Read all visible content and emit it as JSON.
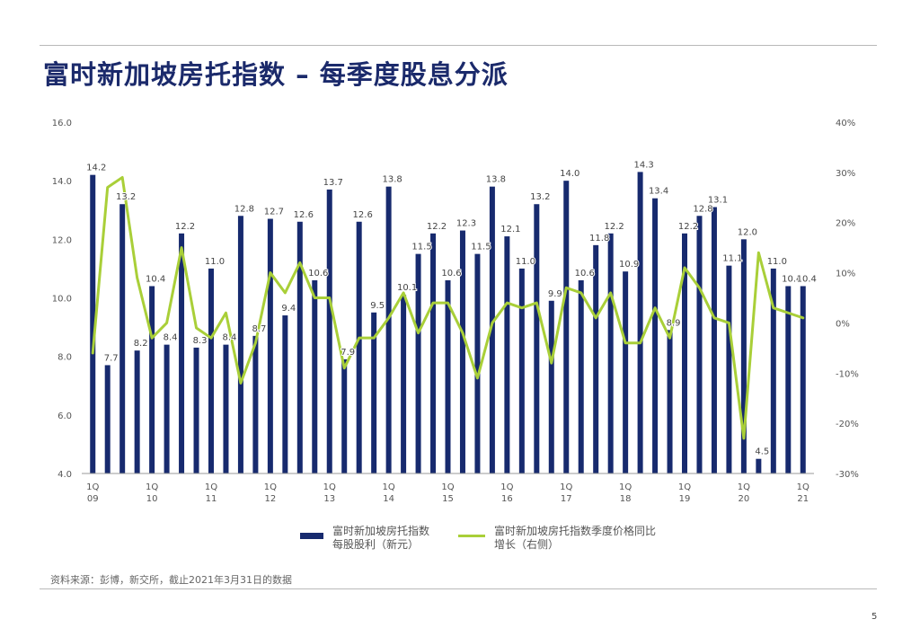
{
  "page": {
    "title": "富时新加坡房托指数 – 每季度股息分派",
    "source": "资料来源：彭博，新交所，截止2021年3月31日的数据",
    "page_number": "5"
  },
  "colors": {
    "bar": "#172a6e",
    "line": "#a9cf38",
    "title": "#1b2a6b"
  },
  "legend": {
    "bar_line1": "富时新加坡房托指数",
    "bar_line2": "每股股利（新元）",
    "line_line1": "富时新加坡房托指数季度价格同比",
    "line_line2": "增长（右侧）"
  },
  "chart_data": {
    "type": "bar+line",
    "title": "富时新加坡房托指数 – 每季度股息分派",
    "left_axis": {
      "min": 4.0,
      "max": 16.0,
      "ticks": [
        "4.0",
        "6.0",
        "8.0",
        "10.0",
        "12.0",
        "14.0",
        "16.0"
      ]
    },
    "right_axis": {
      "min": -30,
      "max": 40,
      "ticks": [
        "-30%",
        "-20%",
        "-10%",
        "0%",
        "10%",
        "20%",
        "30%",
        "40%"
      ]
    },
    "x_tick_labels": [
      {
        "index": 0,
        "q": "1Q",
        "y": "09"
      },
      {
        "index": 4,
        "q": "1Q",
        "y": "10"
      },
      {
        "index": 8,
        "q": "1Q",
        "y": "11"
      },
      {
        "index": 12,
        "q": "1Q",
        "y": "12"
      },
      {
        "index": 16,
        "q": "1Q",
        "y": "13"
      },
      {
        "index": 20,
        "q": "1Q",
        "y": "14"
      },
      {
        "index": 24,
        "q": "1Q",
        "y": "15"
      },
      {
        "index": 28,
        "q": "1Q",
        "y": "16"
      },
      {
        "index": 32,
        "q": "1Q",
        "y": "17"
      },
      {
        "index": 36,
        "q": "1Q",
        "y": "18"
      },
      {
        "index": 40,
        "q": "1Q",
        "y": "19"
      },
      {
        "index": 44,
        "q": "1Q",
        "y": "20"
      },
      {
        "index": 48,
        "q": "1Q",
        "y": "21"
      }
    ],
    "series": [
      {
        "name": "富时新加坡房托指数 每股股利（新元）",
        "kind": "bar",
        "values": [
          14.2,
          7.7,
          13.2,
          8.2,
          10.4,
          8.4,
          12.2,
          8.3,
          11.0,
          8.4,
          12.8,
          8.7,
          12.7,
          9.4,
          12.6,
          10.6,
          13.7,
          7.9,
          12.6,
          9.5,
          13.8,
          10.1,
          11.5,
          12.2,
          10.6,
          12.3,
          11.5,
          13.8,
          12.1,
          11.0,
          13.2,
          9.9,
          14.0,
          10.6,
          11.8,
          12.2,
          10.9,
          14.3,
          13.4,
          8.9,
          12.2,
          12.8,
          13.1,
          11.1,
          12.0,
          4.5,
          11.0,
          10.4,
          10.4
        ]
      },
      {
        "name": "富时新加坡房托指数季度价格同比增长（右侧）",
        "kind": "line",
        "values": [
          -6,
          27,
          29,
          9,
          -3,
          0,
          15,
          -1,
          -3,
          2,
          -12,
          -4,
          10,
          6,
          12,
          5,
          5,
          -9,
          -3,
          -3,
          1,
          6,
          -2,
          4,
          4,
          -2,
          -11,
          0,
          4,
          3,
          4,
          -8,
          7,
          6,
          1,
          6,
          -4,
          -4,
          3,
          -3,
          11,
          7,
          1,
          0,
          -23,
          14,
          3,
          2,
          1
        ]
      }
    ]
  }
}
